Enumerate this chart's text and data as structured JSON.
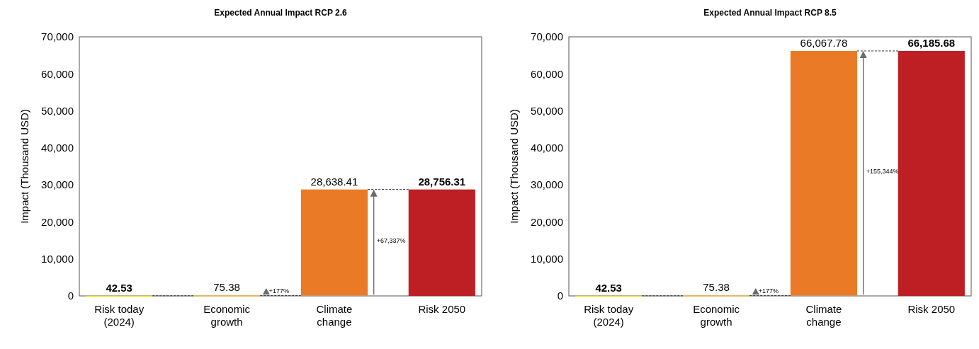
{
  "chart_data": [
    {
      "type": "bar",
      "title": "Expected Annual Impact RCP 2.6",
      "ylabel": "Impact (Thousand USD)",
      "categories": [
        "Risk today (2024)",
        "Economic growth",
        "Climate change",
        "Risk 2050"
      ],
      "values": [
        42.53,
        75.38,
        28638.41,
        28756.31
      ],
      "base": [
        0,
        42.53,
        117.91,
        0
      ],
      "colors": [
        "#f5e11a",
        "#f5c242",
        "#eb7a26",
        "#bd1f24"
      ],
      "value_labels": [
        "42.53",
        "75.38",
        "28,638.41",
        "28,756.31"
      ],
      "ylim": [
        0,
        70000
      ],
      "yticks": [
        {
          "value": 0,
          "label": "0"
        },
        {
          "value": 10000,
          "label": "10,000"
        },
        {
          "value": 20000,
          "label": "20,000"
        },
        {
          "value": 30000,
          "label": "30,000"
        },
        {
          "value": 40000,
          "label": "40,000"
        },
        {
          "value": 50000,
          "label": "50,000"
        },
        {
          "value": 60000,
          "label": "60,000"
        },
        {
          "value": 70000,
          "label": "70,000"
        }
      ],
      "annotations": [
        "+177%",
        "+67,337%"
      ],
      "grid": false
    },
    {
      "type": "bar",
      "title": "Expected Annual Impact RCP 8.5",
      "ylabel": "Impact (Thousand USD)",
      "categories": [
        "Risk today (2024)",
        "Economic growth",
        "Climate change",
        "Risk 2050"
      ],
      "values": [
        42.53,
        75.38,
        66067.78,
        66185.68
      ],
      "base": [
        0,
        42.53,
        117.91,
        0
      ],
      "colors": [
        "#f5e11a",
        "#f5c242",
        "#eb7a26",
        "#bd1f24"
      ],
      "value_labels": [
        "42.53",
        "75.38",
        "66,067.78",
        "66,185.68"
      ],
      "ylim": [
        0,
        70000
      ],
      "yticks": [
        {
          "value": 0,
          "label": "0"
        },
        {
          "value": 10000,
          "label": "10,000"
        },
        {
          "value": 20000,
          "label": "20,000"
        },
        {
          "value": 30000,
          "label": "30,000"
        },
        {
          "value": 40000,
          "label": "40,000"
        },
        {
          "value": 50000,
          "label": "50,000"
        },
        {
          "value": 60000,
          "label": "60,000"
        },
        {
          "value": 70000,
          "label": "70,000"
        }
      ],
      "annotations": [
        "+177%",
        "+155,344%"
      ],
      "grid": false
    }
  ]
}
